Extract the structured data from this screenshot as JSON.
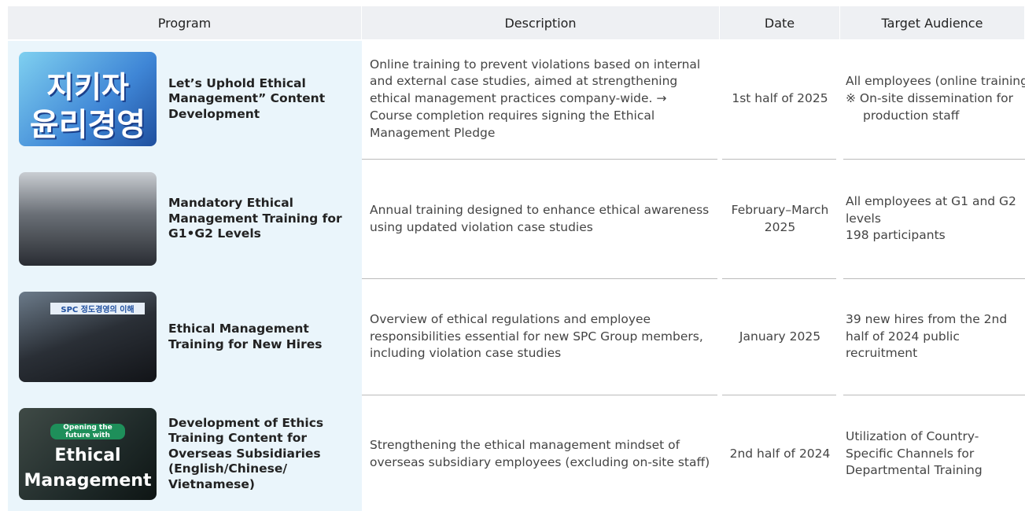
{
  "table": {
    "header": [
      "Program",
      "Description",
      "Date",
      "Target Audience"
    ],
    "rows": [
      {
        "program": "Let’s Uphold Ethical Management” Content Development",
        "image_text": [
          "지키자",
          "윤리경영"
        ],
        "description": "Online training to prevent violations based on internal and external case studies, aimed at strengthening ethical management practices company-wide. → Course completion requires signing the Ethical Management Pledge",
        "date": "1st half of 2025",
        "audience": [
          "All employees (online training)",
          "※ On-site dissemination for production staff"
        ]
      },
      {
        "program": "Mandatory Ethical Management Training for G1•G2 Levels",
        "image_text": [],
        "description": "Annual training designed to enhance ethical awareness using updated violation case studies",
        "date": "February–March 2025",
        "audience": [
          "All employees at G1 and G2 levels",
          "198 participants"
        ]
      },
      {
        "program": "Ethical Management Training for New Hires",
        "image_text": [
          "SPC 정도경영의 이해"
        ],
        "description": "Overview of ethical regulations and employee responsibilities essential for new SPC Group members, including violation case studies",
        "date": "January 2025",
        "audience": [
          "39 new hires from the 2nd half of 2024 public recruitment"
        ]
      },
      {
        "program": "Development of Ethics Training Content for Overseas Subsidiaries (English/Chinese/ Vietnamese)",
        "image_text": [
          "Opening the future with",
          "Ethical",
          "Management"
        ],
        "description": "Strengthening the ethical management mindset of overseas subsidiary employees (excluding on-site staff)",
        "date": "2nd half of 2024",
        "audience": [
          "Utilization of Country-Specific Channels for Departmental Training"
        ]
      }
    ]
  }
}
